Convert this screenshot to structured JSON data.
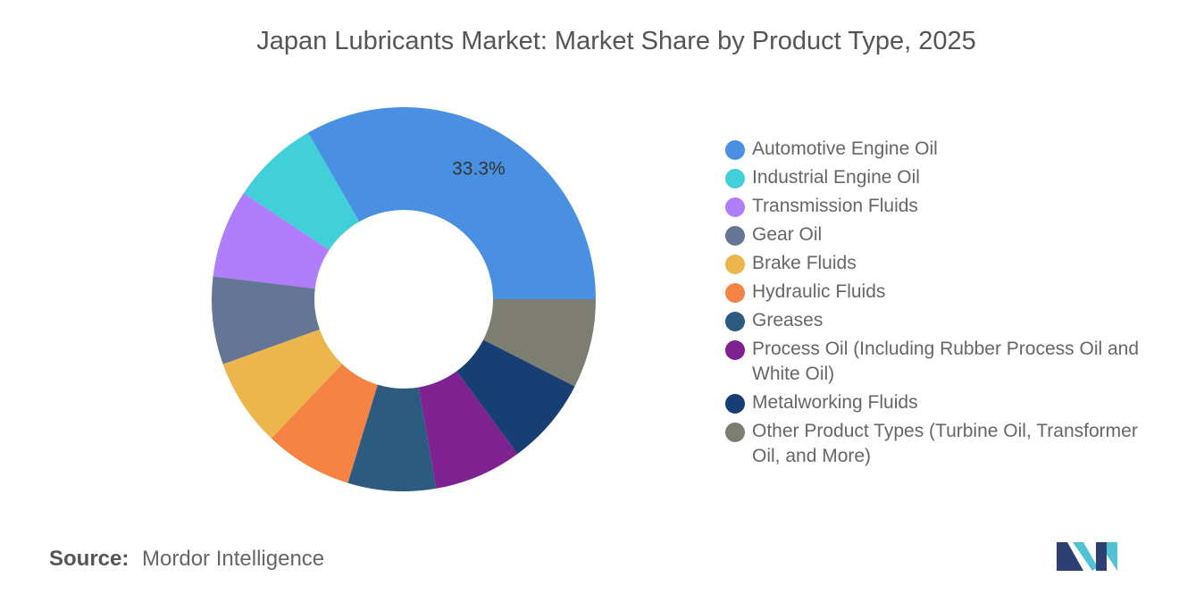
{
  "chart_data": {
    "type": "pie",
    "variant": "donut",
    "title": "Japan Lubricants Market: Market Share by Product Type, 2025",
    "unit": "%",
    "legend_position": "right",
    "slices": [
      {
        "label": "Automotive Engine Oil",
        "value": 33.3,
        "color": "#4A90E2",
        "data_label": "33.3%"
      },
      {
        "label": "Industrial Engine Oil",
        "value": 7.4,
        "color": "#41CFD9",
        "data_label": ""
      },
      {
        "label": "Transmission Fluids",
        "value": 7.4,
        "color": "#B07EFD",
        "data_label": ""
      },
      {
        "label": "Gear Oil",
        "value": 7.4,
        "color": "#647596",
        "data_label": ""
      },
      {
        "label": "Brake Fluids",
        "value": 7.4,
        "color": "#EDB64D",
        "data_label": ""
      },
      {
        "label": "Hydraulic Fluids",
        "value": 7.4,
        "color": "#F58444",
        "data_label": ""
      },
      {
        "label": "Greases",
        "value": 7.4,
        "color": "#2D5B80",
        "data_label": ""
      },
      {
        "label": "Process Oil (Including Rubber Process Oil and White Oil)",
        "value": 7.4,
        "color": "#7E2292",
        "data_label": ""
      },
      {
        "label": "Metalworking Fluids",
        "value": 7.4,
        "color": "#173F73",
        "data_label": ""
      },
      {
        "label": "Other Product Types (Turbine Oil, Transformer Oil, and More)",
        "value": 7.5,
        "color": "#7D7D72",
        "data_label": ""
      }
    ]
  },
  "source": {
    "label": "Source:",
    "value": "Mordor Intelligence"
  },
  "logo": {
    "icon": "mordor-intelligence-logo",
    "colors": [
      "#2E3F74",
      "#4FC3D1"
    ]
  }
}
